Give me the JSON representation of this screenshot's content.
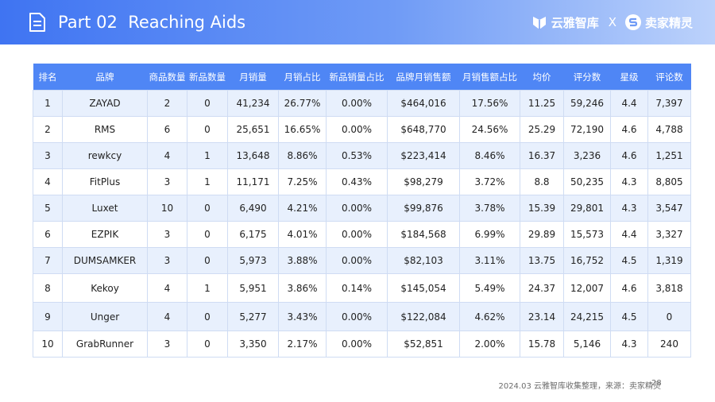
{
  "header": {
    "title": "Part 02  Reaching Aids",
    "icon": "document-icon",
    "brand_left": {
      "name": "云雅智库",
      "icon": "yunya-logo-icon"
    },
    "separator": "X",
    "brand_right": {
      "name": "卖家精灵",
      "icon": "maijia-logo-icon"
    }
  },
  "table": {
    "columns": [
      "排名",
      "品牌",
      "商品数量",
      "新品数量",
      "月销量",
      "月销占比",
      "新品销量占比",
      "品牌月销售额",
      "月销售额占比",
      "均价",
      "评分数",
      "星级",
      "评论数"
    ],
    "rows": [
      [
        "1",
        "ZAYAD",
        "2",
        "0",
        "41,234",
        "26.77%",
        "0.00%",
        "$464,016",
        "17.56%",
        "11.25",
        "59,246",
        "4.4",
        "7,397"
      ],
      [
        "2",
        "RMS",
        "6",
        "0",
        "25,651",
        "16.65%",
        "0.00%",
        "$648,770",
        "24.56%",
        "25.29",
        "72,190",
        "4.6",
        "4,788"
      ],
      [
        "3",
        "rewkcy",
        "4",
        "1",
        "13,648",
        "8.86%",
        "0.53%",
        "$223,414",
        "8.46%",
        "16.37",
        "3,236",
        "4.6",
        "1,251"
      ],
      [
        "4",
        "FitPlus",
        "3",
        "1",
        "11,171",
        "7.25%",
        "0.43%",
        "$98,279",
        "3.72%",
        "8.8",
        "50,235",
        "4.3",
        "8,805"
      ],
      [
        "5",
        "Luxet",
        "10",
        "0",
        "6,490",
        "4.21%",
        "0.00%",
        "$99,876",
        "3.78%",
        "15.39",
        "29,801",
        "4.3",
        "3,547"
      ],
      [
        "6",
        "EZPIK",
        "3",
        "0",
        "6,175",
        "4.01%",
        "0.00%",
        "$184,568",
        "6.99%",
        "29.89",
        "15,573",
        "4.4",
        "3,327"
      ],
      [
        "7",
        "DUMSAMKER",
        "3",
        "0",
        "5,973",
        "3.88%",
        "0.00%",
        "$82,103",
        "3.11%",
        "13.75",
        "16,752",
        "4.5",
        "1,319"
      ],
      [
        "8",
        "Kekoy",
        "4",
        "1",
        "5,951",
        "3.86%",
        "0.14%",
        "$145,054",
        "5.49%",
        "24.37",
        "12,007",
        "4.6",
        "3,818"
      ],
      [
        "9",
        "Unger",
        "4",
        "0",
        "5,277",
        "3.43%",
        "0.00%",
        "$122,084",
        "4.62%",
        "23.14",
        "24,215",
        "4.5",
        "0"
      ],
      [
        "10",
        "GrabRunner",
        "3",
        "0",
        "3,350",
        "2.17%",
        "0.00%",
        "$52,851",
        "2.00%",
        "15.78",
        "5,146",
        "4.3",
        "240"
      ]
    ]
  },
  "footer": {
    "source": "2024.03 云雅智库收集整理，来源：卖家精灵",
    "page_number": "28"
  },
  "colors": {
    "header_start": "#3f74f2",
    "header_end": "#bcd2fb",
    "table_header": "#4f86f5",
    "row_stripe": "#e8f0fd",
    "border": "#cfdcf3"
  }
}
